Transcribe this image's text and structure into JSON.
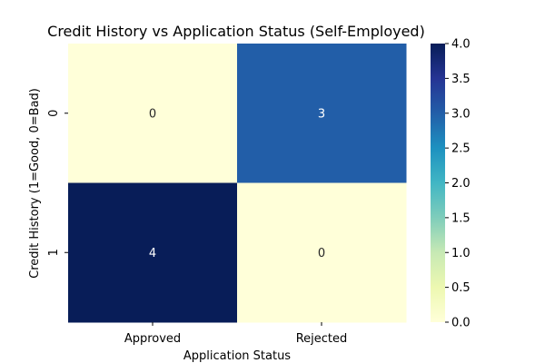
{
  "chart_data": {
    "type": "heatmap",
    "title": "Credit History vs Application Status (Self-Employed)",
    "xlabel": "Application Status",
    "ylabel": "Credit History (1=Good, 0=Bad)",
    "x_categories": [
      "Approved",
      "Rejected"
    ],
    "y_categories": [
      "0",
      "1"
    ],
    "values": [
      [
        0,
        3
      ],
      [
        4,
        0
      ]
    ],
    "colormap": "YlGnBu",
    "colorbar": {
      "range": [
        0.0,
        4.0
      ],
      "ticks": [
        "0.0",
        "0.5",
        "1.0",
        "1.5",
        "2.0",
        "2.5",
        "3.0",
        "3.5",
        "4.0"
      ]
    }
  }
}
